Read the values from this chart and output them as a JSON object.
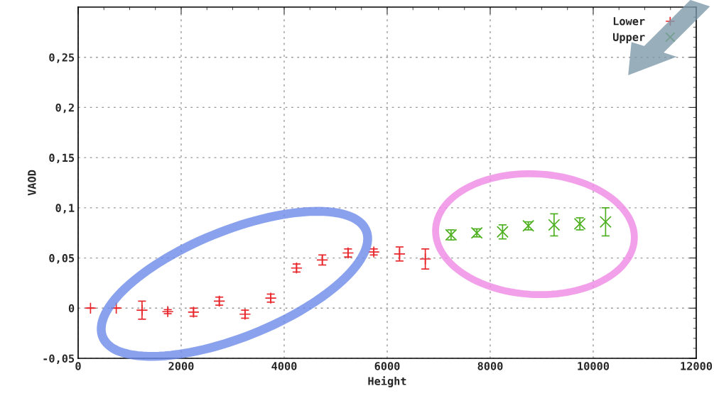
{
  "chart_data": {
    "type": "scatter",
    "xlabel": "Height",
    "ylabel": "VAOD",
    "series": [
      {
        "name": "Lower",
        "color": "#e8262b",
        "marker": "plus",
        "x": [
          240,
          740,
          1240,
          1740,
          2240,
          2740,
          3240,
          3740,
          4240,
          4740,
          5240,
          5740,
          6240,
          6740
        ],
        "values": [
          0,
          0,
          -0.002,
          -0.0035,
          -0.004,
          0.007,
          -0.006,
          0.01,
          0.04,
          0.048,
          0.055,
          0.056,
          0.054,
          0.049
        ],
        "errors": [
          null,
          null,
          0.009,
          0.002,
          0.004,
          0.004,
          0.004,
          0.004,
          0.004,
          0.005,
          0.004,
          0.003,
          0.007,
          0.01
        ]
      },
      {
        "name": "Upper",
        "color": "#4caf1e",
        "marker": "cross",
        "x": [
          7240,
          7740,
          8240,
          8740,
          9240,
          9740,
          10240
        ],
        "values": [
          0.073,
          0.075,
          0.076,
          0.082,
          0.083,
          0.084,
          0.086
        ],
        "errors": [
          0.005,
          0.004,
          0.007,
          0.004,
          0.011,
          0.006,
          0.014
        ]
      }
    ],
    "xlim": [
      0,
      12000
    ],
    "xticks": [
      0,
      2000,
      4000,
      6000,
      8000,
      10000,
      12000
    ],
    "ylim": [
      -0.05,
      0.3
    ],
    "yticks": [
      {
        "value": -0.05,
        "label": "-0,05"
      },
      0,
      {
        "value": 0.05,
        "label": "0,05"
      },
      {
        "value": 0.1,
        "label": "0,1"
      },
      {
        "value": 0.15,
        "label": "0,15"
      },
      {
        "value": 0.2,
        "label": "0,2"
      },
      {
        "value": 0.25,
        "label": "0,25"
      }
    ],
    "grid": true,
    "legend": "top right"
  }
}
